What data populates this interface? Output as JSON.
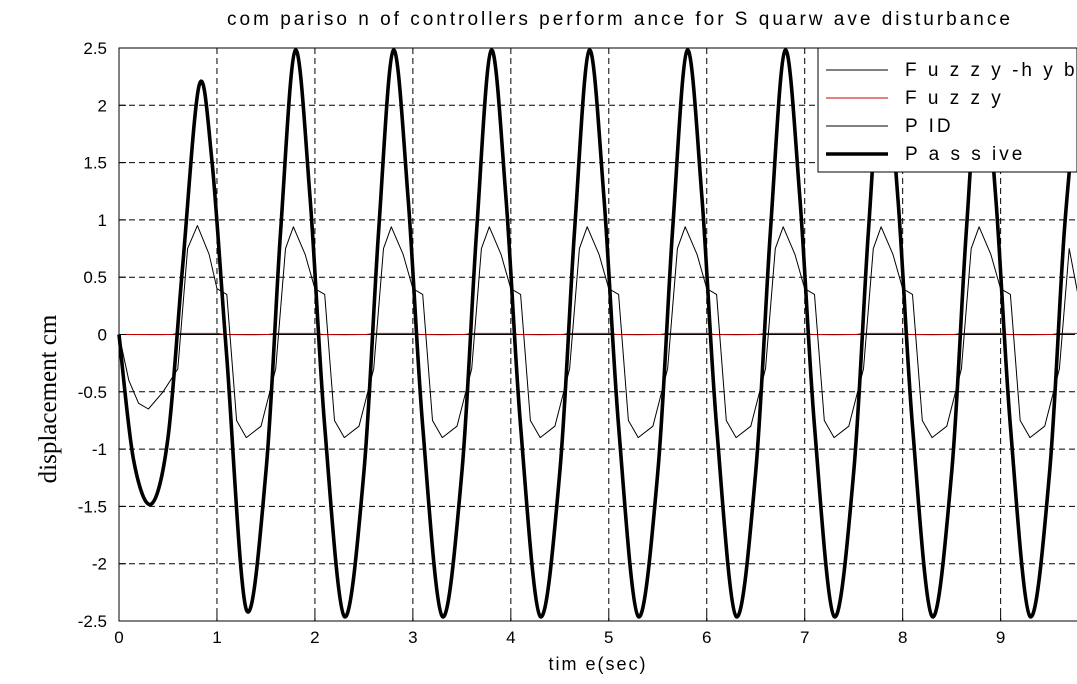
{
  "chart_data": {
    "type": "line",
    "title": "com pariso n of controllers perform ance for S quarw ave disturbance",
    "xlabel": "tim e(sec)",
    "ylabel": "displacement cm",
    "xlim": [
      0,
      9.8
    ],
    "ylim": [
      -2.5,
      2.5
    ],
    "grid": true,
    "legend_position": "top-right",
    "xticks": [
      "0",
      "1",
      "2",
      "3",
      "4",
      "5",
      "6",
      "7",
      "8",
      "9"
    ],
    "yticks": [
      "2.5",
      "2",
      "1.5",
      "1",
      "0.5",
      "0",
      "-0.5",
      "-1",
      "-1.5",
      "-2",
      "-2.5"
    ],
    "series": [
      {
        "name": "Fuzzy-hybrid",
        "legend_label": "F u z z y -h y b rid",
        "color": "#000000",
        "style": "thin",
        "x": [
          0,
          0.25,
          0.5,
          0.75,
          1.0,
          1.25,
          1.5,
          1.75,
          2.0,
          2.25,
          2.5,
          2.75,
          3.0,
          3.25,
          3.5,
          3.75,
          4.0,
          4.25,
          4.5,
          4.75,
          5.0,
          5.25,
          5.5,
          5.75,
          6.0,
          6.25,
          6.5,
          6.75,
          7.0,
          7.25,
          7.5,
          7.75,
          8.0,
          8.25,
          8.5,
          8.75,
          9.0,
          9.25,
          9.5,
          9.75
        ],
        "y": [
          0,
          0,
          0,
          0,
          0,
          0,
          0,
          0,
          0,
          0,
          0,
          0,
          0,
          0,
          0,
          0,
          0,
          0,
          0,
          0,
          0,
          0,
          0,
          0,
          0,
          0,
          0,
          0,
          0,
          0,
          0,
          0,
          0,
          0,
          0,
          0,
          0,
          0,
          0,
          0
        ]
      },
      {
        "name": "Fuzzy",
        "legend_label": "F u z z y",
        "color": "#cc0000",
        "style": "thin",
        "x": [
          0,
          0.5,
          0.6,
          0.8,
          1.0,
          1.1,
          1.5,
          1.6,
          1.8,
          2.0,
          2.1,
          2.5,
          2.6,
          2.8,
          3.0,
          3.1,
          3.5,
          3.6,
          3.8,
          4.0,
          4.1,
          4.5,
          4.6,
          4.8,
          5.0,
          5.1,
          5.5,
          5.6,
          5.8,
          6.0,
          6.1,
          6.5,
          6.6,
          6.8,
          7.0,
          7.1,
          7.5,
          7.6,
          7.8,
          8.0,
          8.1,
          8.5,
          8.6,
          8.8,
          9.0,
          9.1,
          9.5,
          9.6,
          9.8
        ],
        "y": [
          0,
          0,
          0.01,
          0.01,
          0.01,
          0,
          0,
          0.01,
          0.01,
          0.01,
          0,
          0,
          0.01,
          0.01,
          0.01,
          0,
          0,
          0.01,
          0.01,
          0.01,
          0,
          0,
          0.01,
          0.01,
          0.01,
          0,
          0,
          0.01,
          0.01,
          0.01,
          0,
          0,
          0.01,
          0.01,
          0.01,
          0,
          0,
          0.01,
          0.01,
          0.01,
          0,
          0,
          0.01,
          0.01,
          0.01,
          0,
          0,
          0.01,
          0.01
        ]
      },
      {
        "name": "PID",
        "legend_label": "P ID",
        "color": "#000000",
        "style": "thin",
        "x": [
          0,
          0.1,
          0.2,
          0.3,
          0.45,
          0.6,
          0.7,
          0.8,
          0.92,
          1.0,
          1.1,
          1.2,
          1.3,
          1.45,
          1.6,
          1.7,
          1.78,
          1.9,
          2.0,
          2.1,
          2.2,
          2.3,
          2.45,
          2.6,
          2.7,
          2.78,
          2.9,
          3.0,
          3.1,
          3.2,
          3.3,
          3.45,
          3.6,
          3.7,
          3.78,
          3.9,
          4.0,
          4.1,
          4.2,
          4.3,
          4.45,
          4.6,
          4.7,
          4.78,
          4.9,
          5.0,
          5.1,
          5.2,
          5.3,
          5.45,
          5.6,
          5.7,
          5.78,
          5.9,
          6.0,
          6.1,
          6.2,
          6.3,
          6.45,
          6.6,
          6.7,
          6.78,
          6.9,
          7.0,
          7.1,
          7.2,
          7.3,
          7.45,
          7.6,
          7.7,
          7.78,
          7.9,
          8.0,
          8.1,
          8.2,
          8.3,
          8.45,
          8.6,
          8.7,
          8.78,
          8.9,
          9.0,
          9.1,
          9.2,
          9.3,
          9.45,
          9.6,
          9.7,
          9.8
        ],
        "y": [
          0,
          -0.4,
          -0.6,
          -0.65,
          -0.5,
          -0.3,
          0.75,
          0.95,
          0.7,
          0.4,
          0.35,
          -0.75,
          -0.9,
          -0.8,
          -0.3,
          0.75,
          0.94,
          0.7,
          0.4,
          0.35,
          -0.75,
          -0.9,
          -0.8,
          -0.3,
          0.75,
          0.94,
          0.7,
          0.4,
          0.35,
          -0.75,
          -0.9,
          -0.8,
          -0.3,
          0.75,
          0.94,
          0.7,
          0.4,
          0.35,
          -0.75,
          -0.9,
          -0.8,
          -0.3,
          0.75,
          0.94,
          0.7,
          0.4,
          0.35,
          -0.75,
          -0.9,
          -0.8,
          -0.3,
          0.75,
          0.94,
          0.7,
          0.4,
          0.35,
          -0.75,
          -0.9,
          -0.8,
          -0.3,
          0.75,
          0.94,
          0.7,
          0.4,
          0.35,
          -0.75,
          -0.9,
          -0.8,
          -0.3,
          0.75,
          0.94,
          0.7,
          0.4,
          0.35,
          -0.75,
          -0.9,
          -0.8,
          -0.3,
          0.75,
          0.94,
          0.7,
          0.4,
          0.35,
          -0.75,
          -0.9,
          -0.8,
          -0.3,
          0.75,
          0.3
        ]
      },
      {
        "name": "Passive",
        "legend_label": "P a s s ive",
        "color": "#000000",
        "style": "thick",
        "x": [
          0,
          0.15,
          0.33,
          0.5,
          0.65,
          0.82,
          0.95,
          1.1,
          1.3,
          1.5,
          1.65,
          1.8,
          1.95,
          2.1,
          2.3,
          2.5,
          2.65,
          2.8,
          2.95,
          3.1,
          3.3,
          3.5,
          3.65,
          3.8,
          3.95,
          4.1,
          4.3,
          4.5,
          4.65,
          4.8,
          4.95,
          5.1,
          5.3,
          5.5,
          5.65,
          5.8,
          5.95,
          6.1,
          6.3,
          6.5,
          6.65,
          6.8,
          6.95,
          7.1,
          7.3,
          7.5,
          7.65,
          7.8,
          7.95,
          8.1,
          8.3,
          8.5,
          8.65,
          8.8,
          8.95,
          9.1,
          9.3,
          9.5,
          9.65,
          9.8
        ],
        "y": [
          0,
          -1.1,
          -1.48,
          -0.9,
          0.6,
          2.18,
          1.5,
          -0.2,
          -2.4,
          -1.2,
          0.9,
          2.48,
          1.2,
          -0.8,
          -2.46,
          -1.2,
          0.9,
          2.48,
          1.2,
          -0.8,
          -2.46,
          -1.2,
          0.9,
          2.48,
          1.2,
          -0.8,
          -2.46,
          -1.2,
          0.9,
          2.48,
          1.2,
          -0.8,
          -2.46,
          -1.2,
          0.9,
          2.48,
          1.2,
          -0.8,
          -2.46,
          -1.2,
          0.9,
          2.48,
          1.2,
          -0.8,
          -2.46,
          -1.2,
          0.9,
          2.48,
          1.2,
          -0.8,
          -2.46,
          -1.2,
          0.9,
          2.48,
          1.2,
          -0.8,
          -2.46,
          -1.2,
          0.9,
          2.3
        ]
      }
    ]
  }
}
